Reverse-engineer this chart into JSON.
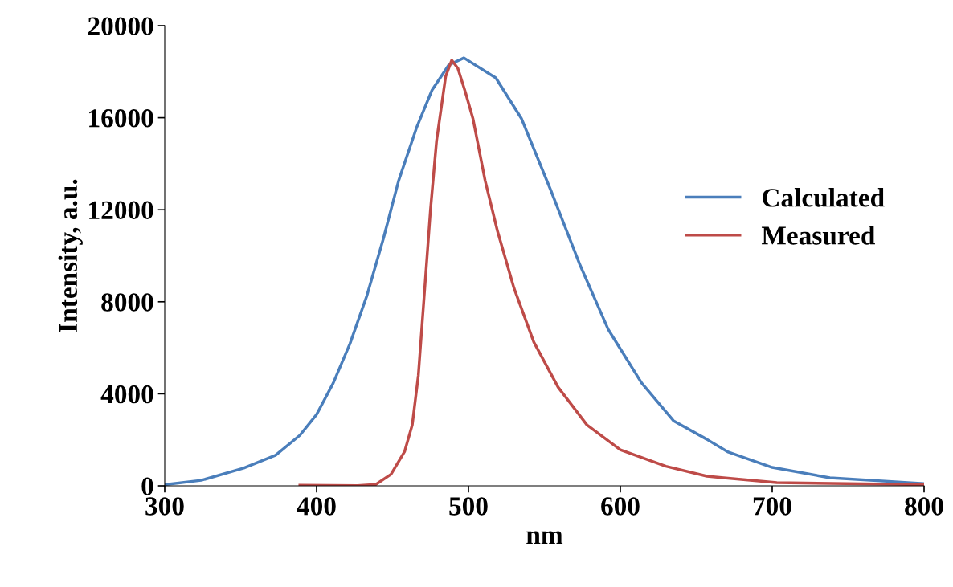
{
  "chart_data": {
    "type": "line",
    "xlabel": "nm",
    "ylabel": "Intensity, a.u.",
    "xlim": [
      300,
      800
    ],
    "xticks": [
      300,
      400,
      500,
      600,
      700,
      800
    ],
    "ylim": [
      0,
      20000
    ],
    "yticks": [
      0,
      4000,
      8000,
      12000,
      16000,
      20000
    ],
    "grid": false,
    "legend": "right",
    "marker": "none",
    "line_style": "solid",
    "series": [
      {
        "name": "Calculated",
        "color": "#4a7ebb",
        "x": [
          300,
          324,
          352,
          373,
          389,
          400,
          411,
          422,
          433,
          444,
          454,
          466,
          476,
          487,
          497,
          518,
          535,
          554,
          573,
          592,
          614,
          635,
          657,
          671,
          700,
          738,
          800
        ],
        "values": [
          50,
          240,
          770,
          1330,
          2200,
          3100,
          4470,
          6180,
          8240,
          10750,
          13260,
          15600,
          17200,
          18290,
          18600,
          17730,
          15950,
          12880,
          9670,
          6800,
          4470,
          2830,
          2020,
          1470,
          800,
          350,
          100
        ]
      },
      {
        "name": "Measured",
        "color": "#be4b48",
        "x": [
          389,
          427,
          439,
          449,
          458,
          463,
          467,
          471,
          475,
          479,
          485,
          489,
          493,
          498,
          503,
          511,
          519,
          530,
          543,
          559,
          578,
          600,
          630,
          657,
          668,
          703,
          800
        ],
        "values": [
          30,
          10,
          60,
          500,
          1500,
          2650,
          4800,
          8400,
          12000,
          15000,
          17800,
          18500,
          18150,
          17100,
          15950,
          13260,
          11100,
          8590,
          6250,
          4290,
          2650,
          1570,
          850,
          420,
          350,
          140,
          50
        ]
      }
    ]
  }
}
